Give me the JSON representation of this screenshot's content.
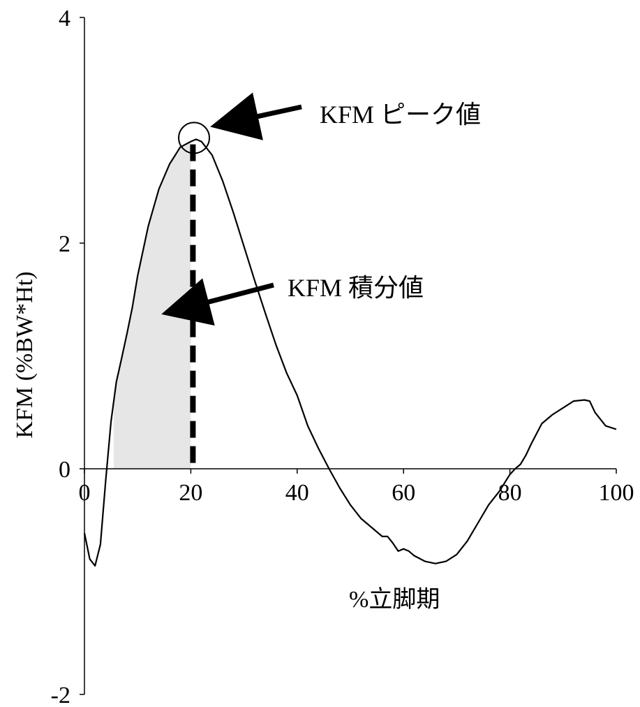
{
  "chart_data": {
    "type": "line",
    "title": "",
    "xlabel": "%立脚期",
    "ylabel": "KFM (%BW*Ht)",
    "xlim": [
      0,
      100
    ],
    "ylim": [
      -2,
      4
    ],
    "xticks": [
      0,
      20,
      40,
      60,
      80,
      100
    ],
    "yticks": [
      -2,
      0,
      2,
      4
    ],
    "xtick_labels": [
      "0",
      "20",
      "40",
      "60",
      "80",
      "100"
    ],
    "ytick_labels": [
      "-2",
      "0",
      "2",
      "4"
    ],
    "grid": false,
    "legend": "none",
    "series": [
      {
        "x": [
          0,
          1,
          2,
          3,
          4,
          5,
          6,
          7,
          8,
          9,
          10,
          12,
          14,
          16,
          18,
          20,
          21,
          22,
          24,
          26,
          28,
          30,
          32,
          34,
          36,
          38,
          40,
          42,
          44,
          46,
          48,
          50,
          52,
          54,
          56,
          57,
          58,
          59,
          60,
          61,
          62,
          64,
          66,
          68,
          70,
          72,
          74,
          76,
          78,
          80,
          81,
          82,
          83,
          84,
          86,
          88,
          90,
          92,
          94,
          95,
          96,
          98,
          100
        ],
        "values": [
          -0.57,
          -0.8,
          -0.86,
          -0.67,
          -0.1,
          0.42,
          0.77,
          0.98,
          1.2,
          1.43,
          1.71,
          2.15,
          2.48,
          2.7,
          2.85,
          2.9,
          2.92,
          2.9,
          2.78,
          2.55,
          2.27,
          1.97,
          1.67,
          1.38,
          1.1,
          0.85,
          0.65,
          0.38,
          0.18,
          0.0,
          -0.17,
          -0.32,
          -0.44,
          -0.52,
          -0.6,
          -0.6,
          -0.66,
          -0.73,
          -0.71,
          -0.73,
          -0.77,
          -0.82,
          -0.84,
          -0.82,
          -0.76,
          -0.64,
          -0.48,
          -0.32,
          -0.2,
          -0.05,
          0.0,
          0.04,
          0.12,
          0.22,
          0.4,
          0.48,
          0.54,
          0.6,
          0.61,
          0.6,
          0.5,
          0.38,
          0.35
        ]
      }
    ],
    "peak": {
      "x": 21,
      "y": 2.92
    },
    "shaded_region": {
      "x_start": 5.5,
      "x_end": 20,
      "color": "#e6e6e6"
    },
    "annotations": {
      "peak_label": "KFM ピーク値",
      "integral_label": "KFM 積分値"
    }
  }
}
